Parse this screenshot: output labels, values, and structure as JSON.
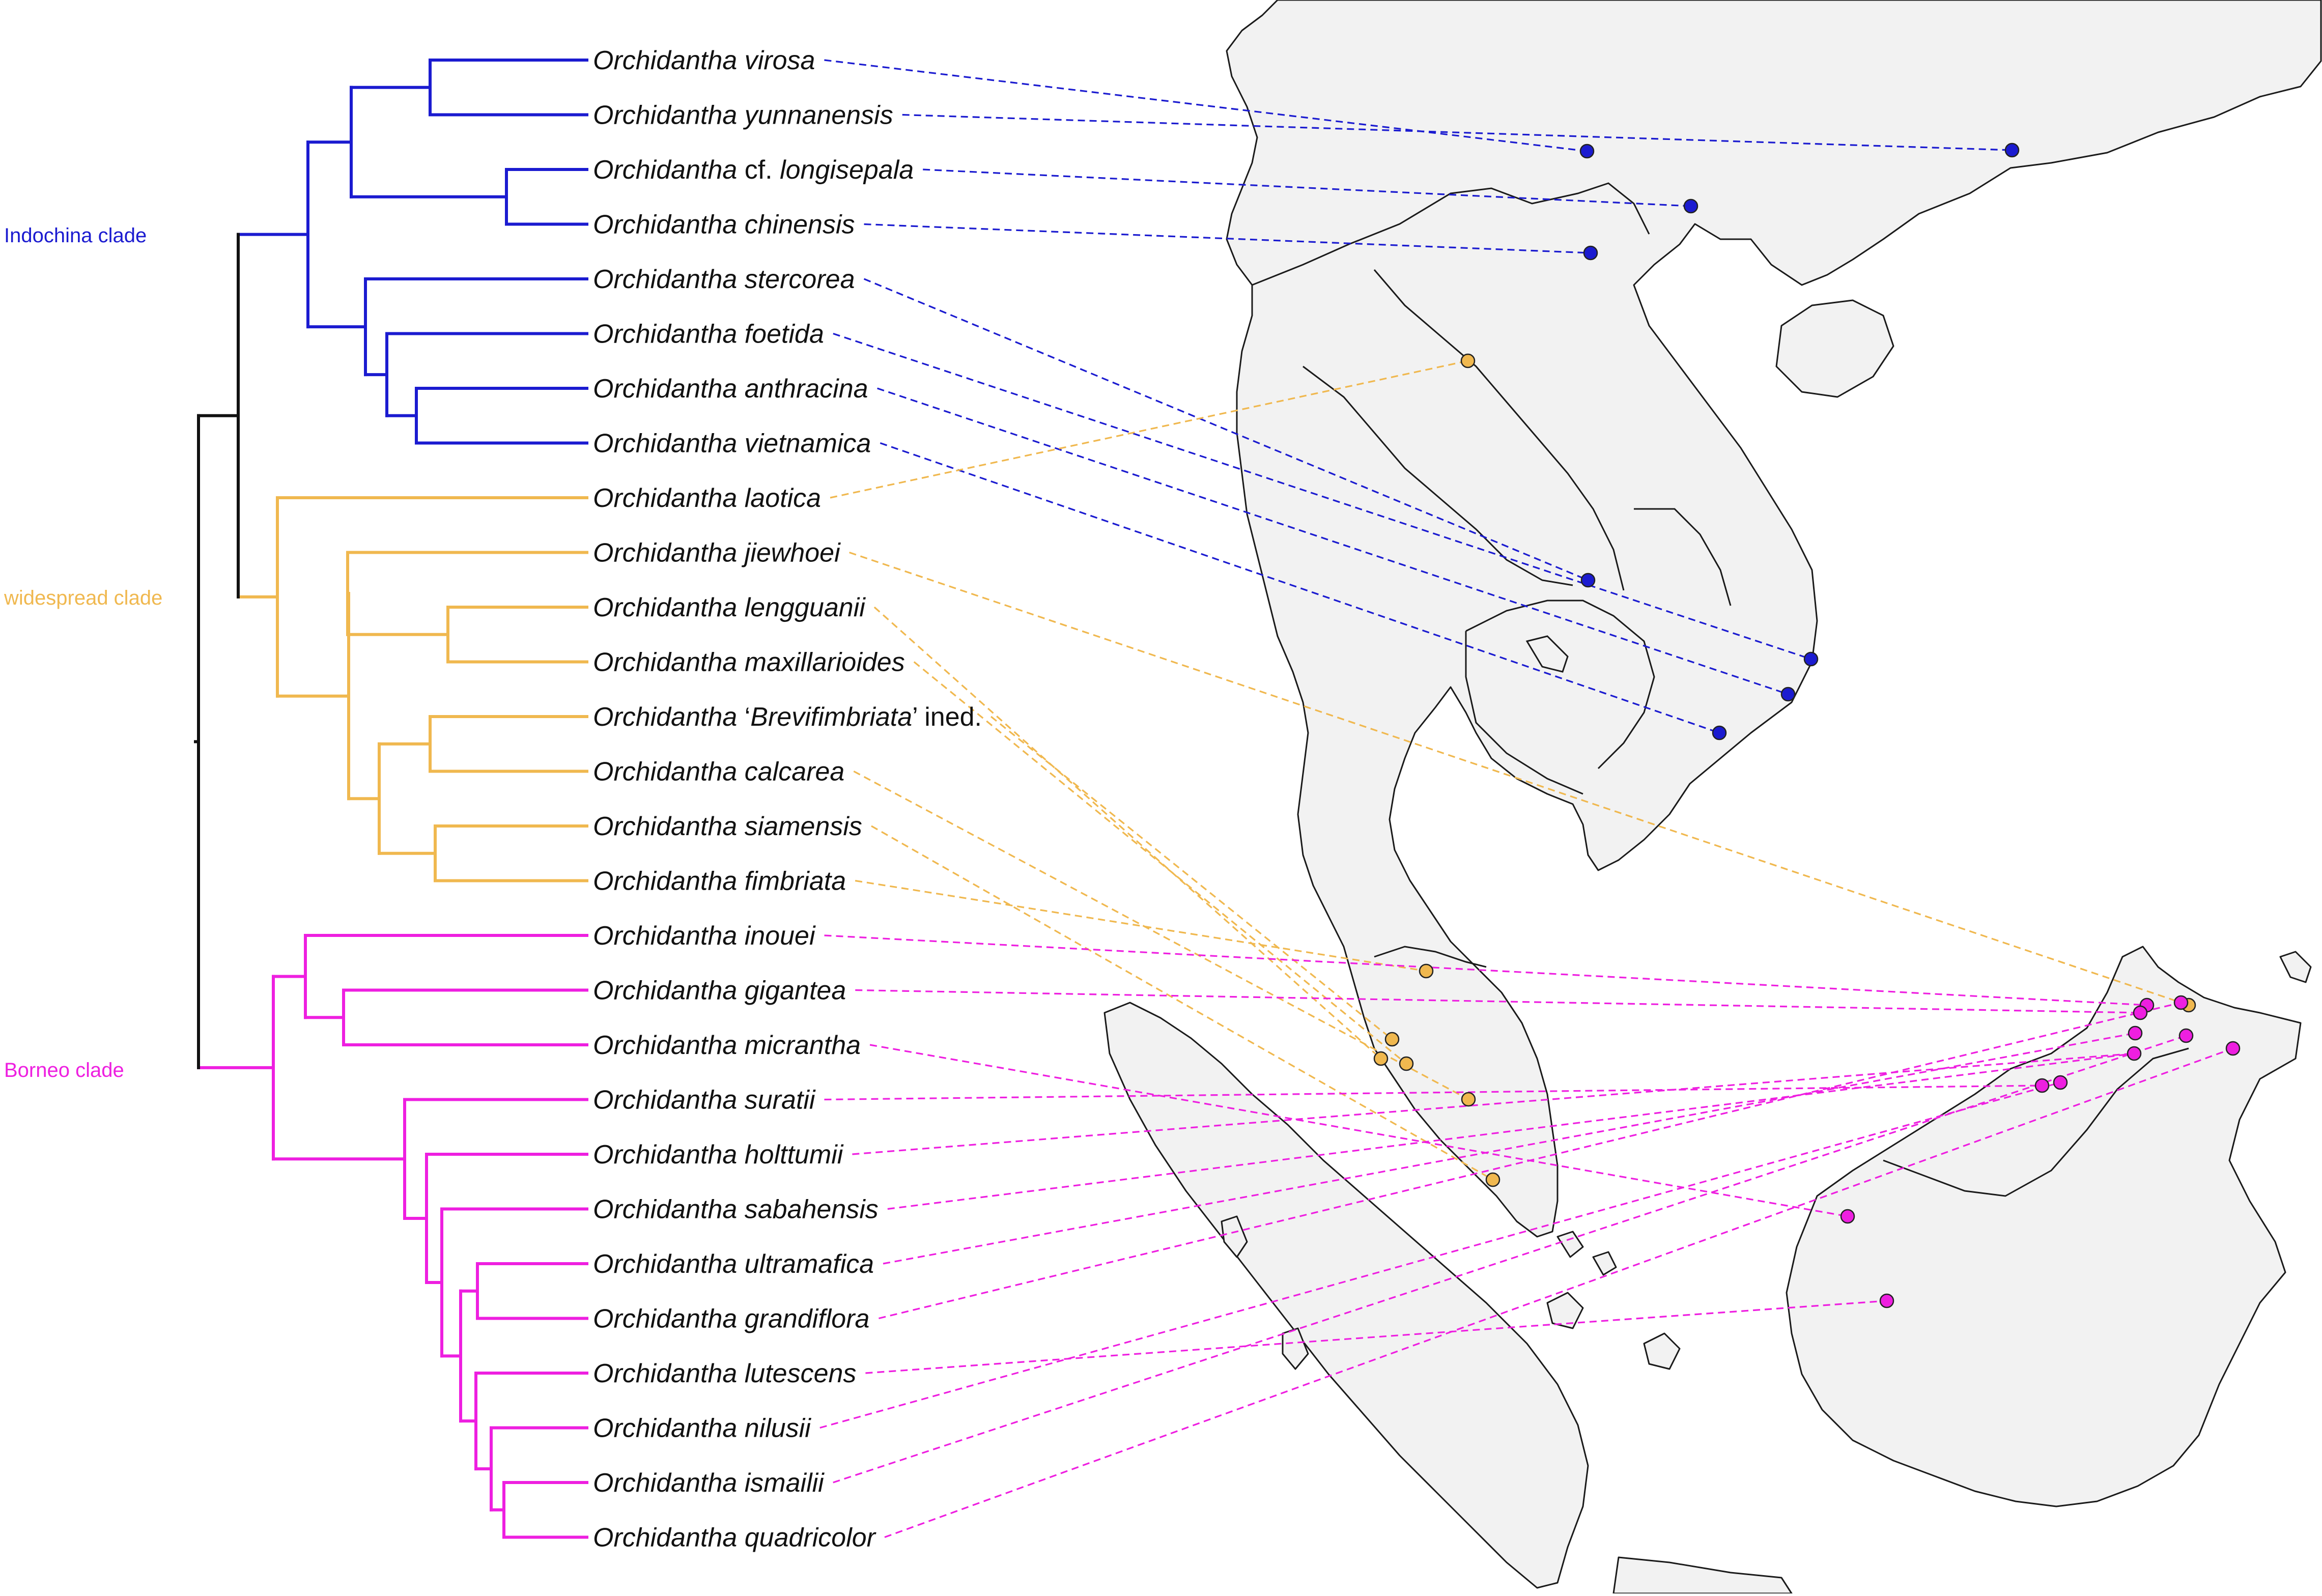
{
  "colors": {
    "indochina": "#1b1bd0",
    "widespread": "#f0b84f",
    "borneo": "#ee1fe0",
    "root": "#111111",
    "land": "#f2f2f2"
  },
  "clades": {
    "indochina": "Indochina clade",
    "widespread": "widespread clade",
    "borneo": "Borneo clade"
  },
  "genus": "Orchidantha",
  "ined_suffix": " ined.",
  "taxa": [
    {
      "id": "virosa",
      "clade": "indochina",
      "pre": "",
      "it": "virosa",
      "post": ""
    },
    {
      "id": "yunnanensis",
      "clade": "indochina",
      "pre": "",
      "it": "yunnanensis",
      "post": ""
    },
    {
      "id": "longisepala",
      "clade": "indochina",
      "pre": "cf. ",
      "it": "longisepala",
      "post": ""
    },
    {
      "id": "chinensis",
      "clade": "indochina",
      "pre": "",
      "it": "chinensis",
      "post": ""
    },
    {
      "id": "stercorea",
      "clade": "indochina",
      "pre": "",
      "it": "stercorea",
      "post": ""
    },
    {
      "id": "foetida",
      "clade": "indochina",
      "pre": "",
      "it": "foetida",
      "post": ""
    },
    {
      "id": "anthracina",
      "clade": "indochina",
      "pre": "",
      "it": "anthracina",
      "post": ""
    },
    {
      "id": "vietnamica",
      "clade": "indochina",
      "pre": "",
      "it": "vietnamica",
      "post": ""
    },
    {
      "id": "laotica",
      "clade": "widespread",
      "pre": "",
      "it": "laotica",
      "post": ""
    },
    {
      "id": "jiewhoei",
      "clade": "widespread",
      "pre": "",
      "it": "jiewhoei",
      "post": ""
    },
    {
      "id": "lengguanii",
      "clade": "widespread",
      "pre": "",
      "it": "lengguanii",
      "post": ""
    },
    {
      "id": "maxillarioides",
      "clade": "widespread",
      "pre": "",
      "it": "maxillarioides",
      "post": ""
    },
    {
      "id": "brevifimbriata",
      "clade": "widespread",
      "pre": "‘",
      "it": "Brevifimbriata",
      "post": "’ ined."
    },
    {
      "id": "calcarea",
      "clade": "widespread",
      "pre": "",
      "it": "calcarea",
      "post": ""
    },
    {
      "id": "siamensis",
      "clade": "widespread",
      "pre": "",
      "it": "siamensis",
      "post": ""
    },
    {
      "id": "fimbriata",
      "clade": "widespread",
      "pre": "",
      "it": "fimbriata",
      "post": ""
    },
    {
      "id": "inouei",
      "clade": "borneo",
      "pre": "",
      "it": "inouei",
      "post": ""
    },
    {
      "id": "gigantea",
      "clade": "borneo",
      "pre": "",
      "it": "gigantea",
      "post": ""
    },
    {
      "id": "micrantha",
      "clade": "borneo",
      "pre": "",
      "it": "micrantha",
      "post": ""
    },
    {
      "id": "suratii",
      "clade": "borneo",
      "pre": "",
      "it": "suratii",
      "post": ""
    },
    {
      "id": "holttumii",
      "clade": "borneo",
      "pre": "",
      "it": "holttumii",
      "post": ""
    },
    {
      "id": "sabahensis",
      "clade": "borneo",
      "pre": "",
      "it": "sabahensis",
      "post": ""
    },
    {
      "id": "ultramafica",
      "clade": "borneo",
      "pre": "",
      "it": "ultramafica",
      "post": ""
    },
    {
      "id": "grandiflora",
      "clade": "borneo",
      "pre": "",
      "it": "grandiflora",
      "post": ""
    },
    {
      "id": "lutescens",
      "clade": "borneo",
      "pre": "",
      "it": "lutescens",
      "post": ""
    },
    {
      "id": "nilusii",
      "clade": "borneo",
      "pre": "",
      "it": "nilusii",
      "post": ""
    },
    {
      "id": "ismailii",
      "clade": "borneo",
      "pre": "",
      "it": "ismailii",
      "post": ""
    },
    {
      "id": "quadricolor",
      "clade": "borneo",
      "pre": "",
      "it": "quadricolor",
      "post": ""
    }
  ]
}
